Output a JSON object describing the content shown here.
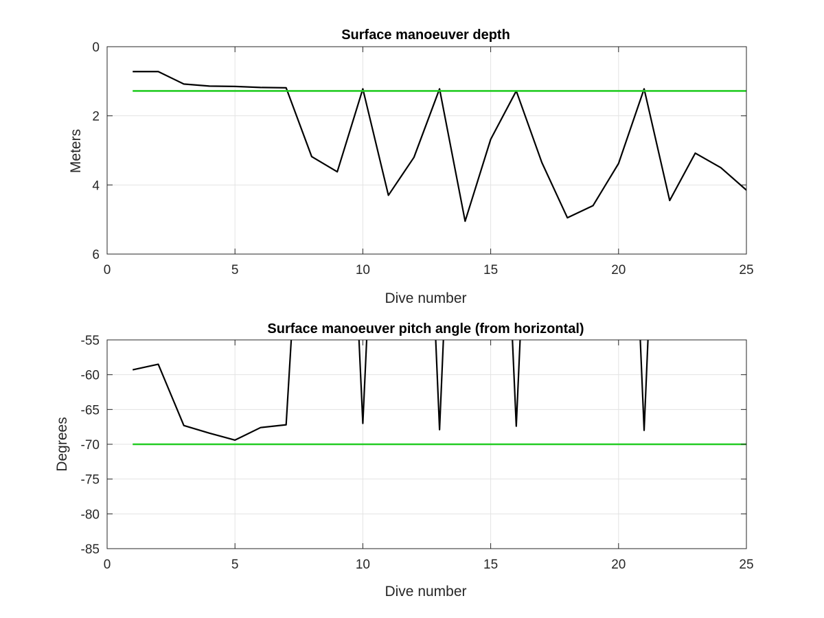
{
  "chart_data": [
    {
      "type": "line",
      "title": "Surface manoeuver depth",
      "xlabel": "Dive number",
      "ylabel": "Meters",
      "xlim": [
        0,
        25
      ],
      "ylim": [
        0,
        6
      ],
      "y_reversed": true,
      "grid": true,
      "xticks": [
        "0",
        "5",
        "10",
        "15",
        "20",
        "25"
      ],
      "yticks": [
        "0",
        "2",
        "4",
        "6"
      ],
      "series": [
        {
          "color": "#000000",
          "x": [
            1,
            2,
            3,
            4,
            5,
            6,
            7,
            8,
            9,
            10,
            11,
            12,
            13,
            14,
            15,
            16,
            17,
            18,
            19,
            20,
            21,
            22,
            23,
            24,
            25
          ],
          "y": [
            0.72,
            0.72,
            1.08,
            1.14,
            1.15,
            1.18,
            1.19,
            3.18,
            3.62,
            1.22,
            4.3,
            3.2,
            1.22,
            5.05,
            2.68,
            1.28,
            3.35,
            4.95,
            4.6,
            3.38,
            1.22,
            4.45,
            3.08,
            3.5,
            4.15
          ]
        },
        {
          "color": "#22cc22",
          "x": [
            1,
            25
          ],
          "y": [
            1.28,
            1.28
          ]
        }
      ]
    },
    {
      "type": "line",
      "title": "Surface manoeuver pitch angle (from horizontal)",
      "xlabel": "Dive number",
      "ylabel": "Degrees",
      "xlim": [
        0,
        25
      ],
      "ylim": [
        -85,
        -55
      ],
      "grid": true,
      "clipped": true,
      "xticks": [
        "0",
        "5",
        "10",
        "15",
        "20",
        "25"
      ],
      "yticks": [
        "-55",
        "-60",
        "-65",
        "-70",
        "-75",
        "-80",
        "-85"
      ],
      "series": [
        {
          "color": "#000000",
          "segments": [
            {
              "x": [
                1,
                2,
                3,
                4,
                5,
                6,
                7,
                7.2
              ],
              "y": [
                -59.3,
                -58.5,
                -67.3,
                -68.4,
                -69.4,
                -67.6,
                -67.2,
                -55
              ]
            },
            {
              "x": [
                9.85,
                10,
                10.15
              ],
              "y": [
                -55,
                -67.0,
                -55
              ]
            },
            {
              "x": [
                12.85,
                13,
                13.15
              ],
              "y": [
                -55,
                -67.9,
                -55
              ]
            },
            {
              "x": [
                15.85,
                16,
                16.15
              ],
              "y": [
                -55,
                -67.4,
                -55
              ]
            },
            {
              "x": [
                20.85,
                21,
                21.15
              ],
              "y": [
                -55,
                -68.0,
                -55
              ]
            }
          ]
        },
        {
          "color": "#22cc22",
          "x": [
            1,
            25
          ],
          "y": [
            -70,
            -70
          ]
        }
      ]
    }
  ]
}
